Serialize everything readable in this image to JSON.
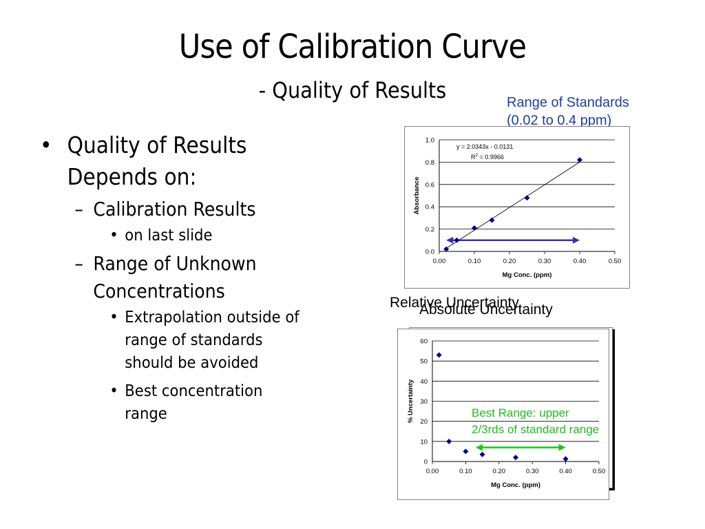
{
  "title": "Use of Calibration Curve",
  "subtitle": "- Quality of Results",
  "range_callout": [
    "Range of Standards",
    "(0.02 to 0.4 ppm)"
  ],
  "bullets": {
    "b1_lines": [
      "Quality of Results",
      "Depends on:"
    ],
    "b1_1": "Calibration Results",
    "b1_1_1": "on last slide",
    "b1_2_lines": [
      "Range of Unknown",
      "Concentrations"
    ],
    "b1_2_1_lines": [
      "Extrapolation outside of",
      "range of standards",
      "should be avoided"
    ],
    "b1_2_2_lines": [
      "Best concentration",
      "range"
    ]
  },
  "bullet_marks": {
    "l1": "•",
    "l2": "–",
    "l3": "•"
  },
  "lower_titles": {
    "behind": "Relative Uncertainty",
    "front": "Absolute Uncertainty"
  },
  "green_note": [
    "Best Range: upper",
    "2/3rds of standard range"
  ],
  "colors": {
    "marker": "#00008b",
    "arrow_blue": "#3333aa",
    "arrow_green": "#11cc11",
    "callout_blue": "#1f3f9a",
    "note_green": "#22bb22"
  },
  "chart_data": [
    {
      "type": "scatter",
      "title": "",
      "xlabel": "Mg Conc. (ppm)",
      "ylabel": "Absorbance",
      "xlim": [
        0,
        0.5
      ],
      "ylim": [
        0,
        1.0
      ],
      "xticks": [
        "0.00",
        "0.10",
        "0.20",
        "0.30",
        "0.40",
        "0.50"
      ],
      "yticks": [
        "0.0",
        "0.2",
        "0.4",
        "0.6",
        "0.8",
        "1.0"
      ],
      "grid": "horizontal",
      "equation": "y = 2.0343x - 0.0131",
      "r2_label": "R",
      "r2_sup": "2",
      "r2_value": " = 0.9966",
      "points": [
        {
          "x": 0.02,
          "y": 0.02
        },
        {
          "x": 0.05,
          "y": 0.1
        },
        {
          "x": 0.1,
          "y": 0.21
        },
        {
          "x": 0.15,
          "y": 0.28
        },
        {
          "x": 0.25,
          "y": 0.48
        },
        {
          "x": 0.4,
          "y": 0.82
        }
      ],
      "trendline": {
        "slope": 2.0343,
        "intercept": -0.0131,
        "x_range": [
          0.02,
          0.4
        ]
      },
      "range_arrow": {
        "y": 0.1,
        "x_start": 0.02,
        "x_end": 0.4
      }
    },
    {
      "type": "scatter",
      "title": "",
      "xlabel": "Mg Conc. (ppm)",
      "ylabel": "% Uncertainty",
      "xlim": [
        0,
        0.5
      ],
      "ylim": [
        0,
        60
      ],
      "xticks": [
        "0.00",
        "0.10",
        "0.20",
        "0.30",
        "0.40",
        "0.50"
      ],
      "yticks": [
        "0",
        "10",
        "20",
        "30",
        "40",
        "50",
        "60"
      ],
      "grid": "horizontal",
      "points": [
        {
          "x": 0.02,
          "y": 53
        },
        {
          "x": 0.05,
          "y": 10
        },
        {
          "x": 0.1,
          "y": 5
        },
        {
          "x": 0.15,
          "y": 3.5
        },
        {
          "x": 0.25,
          "y": 2
        },
        {
          "x": 0.4,
          "y": 1.3
        }
      ],
      "range_arrow": {
        "y": 7,
        "x_start": 0.13,
        "x_end": 0.4
      }
    }
  ]
}
